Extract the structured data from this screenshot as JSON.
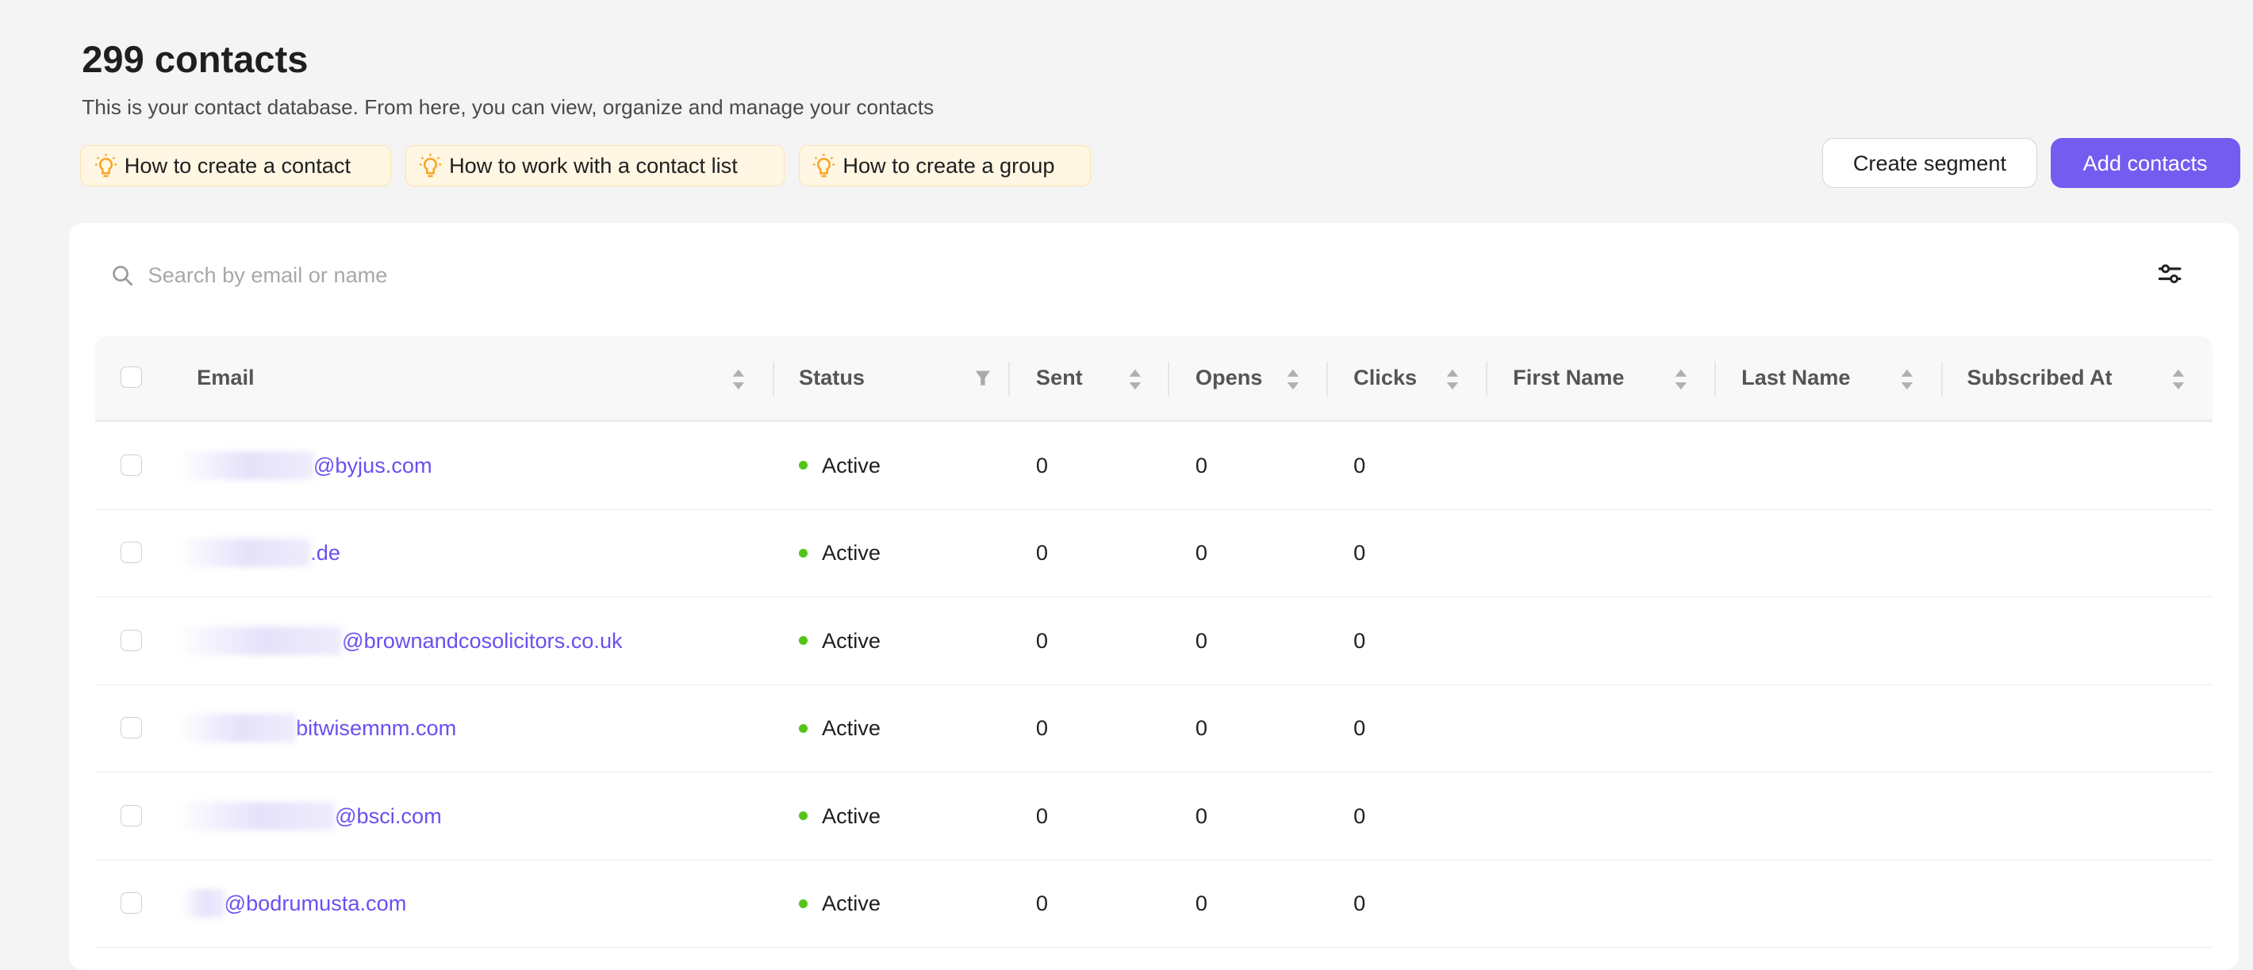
{
  "header": {
    "title": "299 contacts",
    "subtitle": "This is your contact database. From here, you can view, organize and manage your contacts",
    "help_chips": [
      {
        "label": "How to create a contact",
        "icon": "lightbulb-icon"
      },
      {
        "label": "How to work with a contact list",
        "icon": "lightbulb-icon"
      },
      {
        "label": "How to create a group",
        "icon": "lightbulb-icon"
      }
    ],
    "create_segment_label": "Create segment",
    "add_contacts_label": "Add contacts"
  },
  "colors": {
    "accent": "#745cf0",
    "active": "#52c41a",
    "chip_bg": "#fff6e3",
    "link": "#6b4ff0"
  },
  "search": {
    "placeholder": "Search by email or name",
    "value": ""
  },
  "table": {
    "columns": [
      "Email",
      "Status",
      "Sent",
      "Opens",
      "Clicks",
      "First Name",
      "Last Name",
      "Subscribed At"
    ],
    "rows": [
      {
        "email": "@byjus.com",
        "status": "Active",
        "sent": "0",
        "opens": "0",
        "clicks": "0",
        "first_name": "",
        "last_name": "",
        "subscribed_at": ""
      },
      {
        "email": ".de",
        "status": "Active",
        "sent": "0",
        "opens": "0",
        "clicks": "0",
        "first_name": "",
        "last_name": "",
        "subscribed_at": ""
      },
      {
        "email": "@brownandcosolicitors.co.uk",
        "status": "Active",
        "sent": "0",
        "opens": "0",
        "clicks": "0",
        "first_name": "",
        "last_name": "",
        "subscribed_at": ""
      },
      {
        "email": "bitwisemnm.com",
        "status": "Active",
        "sent": "0",
        "opens": "0",
        "clicks": "0",
        "first_name": "",
        "last_name": "",
        "subscribed_at": ""
      },
      {
        "email": "@bsci.com",
        "status": "Active",
        "sent": "0",
        "opens": "0",
        "clicks": "0",
        "first_name": "",
        "last_name": "",
        "subscribed_at": ""
      },
      {
        "email": "@bodrumusta.com",
        "status": "Active",
        "sent": "0",
        "opens": "0",
        "clicks": "0",
        "first_name": "",
        "last_name": "",
        "subscribed_at": ""
      }
    ]
  }
}
